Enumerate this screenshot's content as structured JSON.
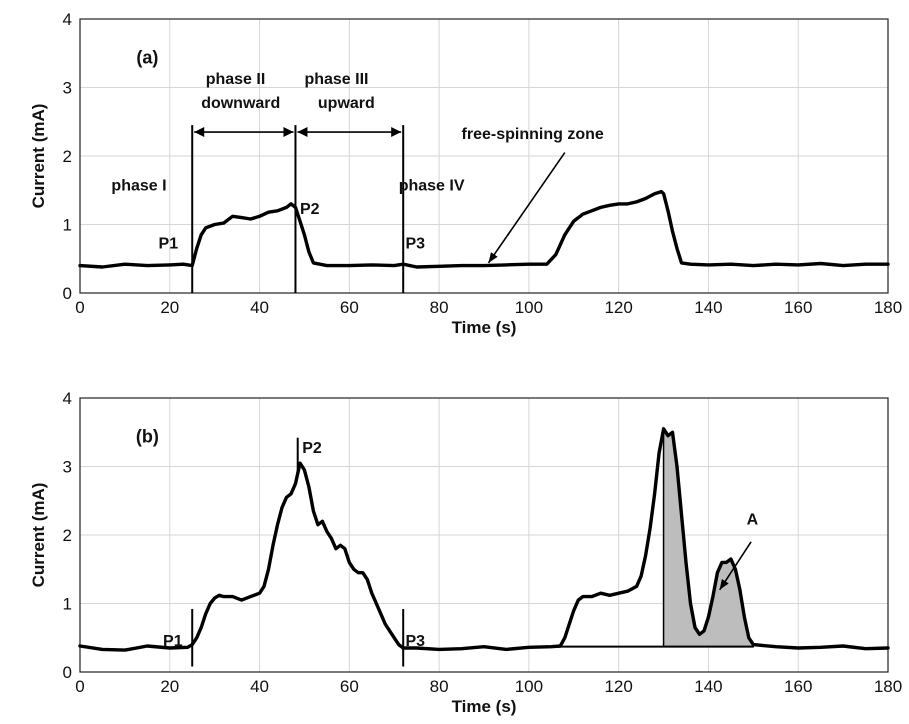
{
  "chart_data": [
    {
      "type": "line",
      "panel_label": "(a)",
      "xlabel": "Time (s)",
      "ylabel": "Current (mA)",
      "xlim": [
        0,
        180
      ],
      "ylim": [
        0,
        4
      ],
      "x_ticks": [
        0,
        20,
        40,
        60,
        80,
        100,
        120,
        140,
        160,
        180
      ],
      "y_ticks": [
        0,
        1,
        2,
        3,
        4
      ],
      "grid": true,
      "series": [
        {
          "x": [
            0,
            5,
            10,
            15,
            20,
            23,
            25,
            26,
            27,
            28,
            30,
            32,
            34,
            36,
            38,
            40,
            42,
            44,
            46,
            47,
            48,
            49,
            50,
            51,
            52,
            55,
            60,
            65,
            70,
            72,
            75,
            80,
            85,
            90,
            95,
            100,
            104,
            106,
            108,
            110,
            112,
            114,
            116,
            118,
            120,
            122,
            124,
            126,
            128,
            129.5,
            130,
            131,
            132,
            133,
            134,
            136,
            140,
            145,
            150,
            155,
            160,
            165,
            170,
            175,
            180
          ],
          "y": [
            0.4,
            0.38,
            0.42,
            0.4,
            0.41,
            0.42,
            0.4,
            0.65,
            0.85,
            0.95,
            1.0,
            1.02,
            1.12,
            1.1,
            1.08,
            1.12,
            1.18,
            1.2,
            1.25,
            1.3,
            1.25,
            1.05,
            0.85,
            0.6,
            0.44,
            0.4,
            0.4,
            0.41,
            0.4,
            0.42,
            0.38,
            0.39,
            0.4,
            0.4,
            0.41,
            0.42,
            0.42,
            0.56,
            0.85,
            1.05,
            1.15,
            1.2,
            1.25,
            1.28,
            1.3,
            1.3,
            1.33,
            1.38,
            1.45,
            1.48,
            1.45,
            1.2,
            0.9,
            0.65,
            0.44,
            0.42,
            0.41,
            0.42,
            0.4,
            0.42,
            0.41,
            0.43,
            0.4,
            0.42,
            0.42
          ]
        }
      ],
      "markers": [
        {
          "x": 25,
          "y_from": 0,
          "y_to": 2.45
        },
        {
          "x": 48,
          "y_from": 0,
          "y_to": 2.45
        },
        {
          "x": 72,
          "y_from": 0,
          "y_to": 2.45
        }
      ],
      "range_arrows": [
        {
          "x_from": 25,
          "x_to": 48,
          "y": 2.35
        },
        {
          "x_from": 48,
          "x_to": 72,
          "y": 2.35
        }
      ],
      "annotations": [
        {
          "text": "phase I",
          "x": 7,
          "y": 1.5
        },
        {
          "text": "phase II",
          "x": 28,
          "y": 3.05
        },
        {
          "text": "downward",
          "x": 27,
          "y": 2.7
        },
        {
          "text": "phase III",
          "x": 50,
          "y": 3.05
        },
        {
          "text": "upward",
          "x": 53,
          "y": 2.7
        },
        {
          "text": "phase IV",
          "x": 71,
          "y": 1.5
        },
        {
          "text": "free-spinning zone",
          "x": 85,
          "y": 2.25
        },
        {
          "text": "P1",
          "x": 17.5,
          "y": 0.65
        },
        {
          "text": "P2",
          "x": 49,
          "y": 1.15
        },
        {
          "text": "P3",
          "x": 72.5,
          "y": 0.65
        }
      ],
      "pointer": {
        "from_x": 108,
        "from_y": 2.05,
        "to_x": 91,
        "to_y": 0.44
      }
    },
    {
      "type": "line",
      "panel_label": "(b)",
      "xlabel": "Time (s)",
      "ylabel": "Current (mA)",
      "xlim": [
        0,
        180
      ],
      "ylim": [
        0,
        4
      ],
      "x_ticks": [
        0,
        20,
        40,
        60,
        80,
        100,
        120,
        140,
        160,
        180
      ],
      "y_ticks": [
        0,
        1,
        2,
        3,
        4
      ],
      "grid": true,
      "series": [
        {
          "x": [
            0,
            5,
            10,
            15,
            20,
            24,
            25,
            26,
            27,
            28,
            29,
            30,
            31,
            32,
            34,
            36,
            38,
            40,
            41,
            42,
            43,
            44,
            45,
            46,
            47,
            48,
            49,
            50,
            51,
            52,
            53,
            54,
            55,
            56,
            57,
            58,
            59,
            60,
            61,
            62,
            63,
            64,
            65,
            66,
            67,
            68,
            69,
            70,
            71,
            72,
            75,
            80,
            85,
            90,
            95,
            100,
            105,
            107,
            108,
            109,
            110,
            111,
            112,
            114,
            116,
            118,
            120,
            122,
            124,
            125,
            126,
            127,
            128,
            129,
            130,
            131,
            132,
            133,
            134,
            135,
            136,
            137,
            138,
            139,
            140,
            141,
            142,
            143,
            144,
            145,
            146,
            147,
            148,
            149,
            150,
            155,
            160,
            165,
            170,
            175,
            180
          ],
          "y": [
            0.38,
            0.33,
            0.32,
            0.38,
            0.35,
            0.36,
            0.4,
            0.5,
            0.65,
            0.85,
            1.0,
            1.08,
            1.12,
            1.1,
            1.1,
            1.05,
            1.1,
            1.15,
            1.25,
            1.5,
            1.85,
            2.15,
            2.4,
            2.55,
            2.6,
            2.75,
            3.05,
            2.95,
            2.7,
            2.35,
            2.15,
            2.2,
            2.05,
            1.95,
            1.8,
            1.85,
            1.8,
            1.6,
            1.5,
            1.45,
            1.45,
            1.35,
            1.15,
            1.0,
            0.85,
            0.7,
            0.6,
            0.5,
            0.4,
            0.35,
            0.35,
            0.33,
            0.34,
            0.37,
            0.33,
            0.36,
            0.37,
            0.38,
            0.5,
            0.7,
            0.9,
            1.05,
            1.1,
            1.1,
            1.15,
            1.12,
            1.15,
            1.18,
            1.25,
            1.4,
            1.7,
            2.1,
            2.6,
            3.2,
            3.55,
            3.45,
            3.5,
            3.0,
            2.3,
            1.6,
            1.0,
            0.65,
            0.55,
            0.6,
            0.8,
            1.1,
            1.45,
            1.6,
            1.6,
            1.65,
            1.5,
            1.2,
            0.8,
            0.5,
            0.4,
            0.37,
            0.35,
            0.36,
            0.38,
            0.34,
            0.35
          ]
        }
      ],
      "markers": [
        {
          "x": 25,
          "y_from": 0.08,
          "y_to": 0.92
        },
        {
          "x": 48.5,
          "y_from": 2.9,
          "y_to": 3.42
        },
        {
          "x": 72,
          "y_from": 0.08,
          "y_to": 0.92
        }
      ],
      "shaded_region": {
        "x_from": 130,
        "x_to": 150,
        "baseline": 0.37
      },
      "baseline_line": {
        "x_from": 105,
        "x_to": 150,
        "y": 0.37
      },
      "annotations": [
        {
          "text": "P1",
          "x": 18.5,
          "y": 0.38
        },
        {
          "text": "P2",
          "x": 49.5,
          "y": 3.2
        },
        {
          "text": "P3",
          "x": 72.5,
          "y": 0.38
        },
        {
          "text": "A",
          "x": 148.5,
          "y": 2.15
        }
      ],
      "pointer": {
        "from_x": 149.5,
        "from_y": 1.9,
        "to_x": 142.5,
        "to_y": 1.2
      }
    }
  ]
}
